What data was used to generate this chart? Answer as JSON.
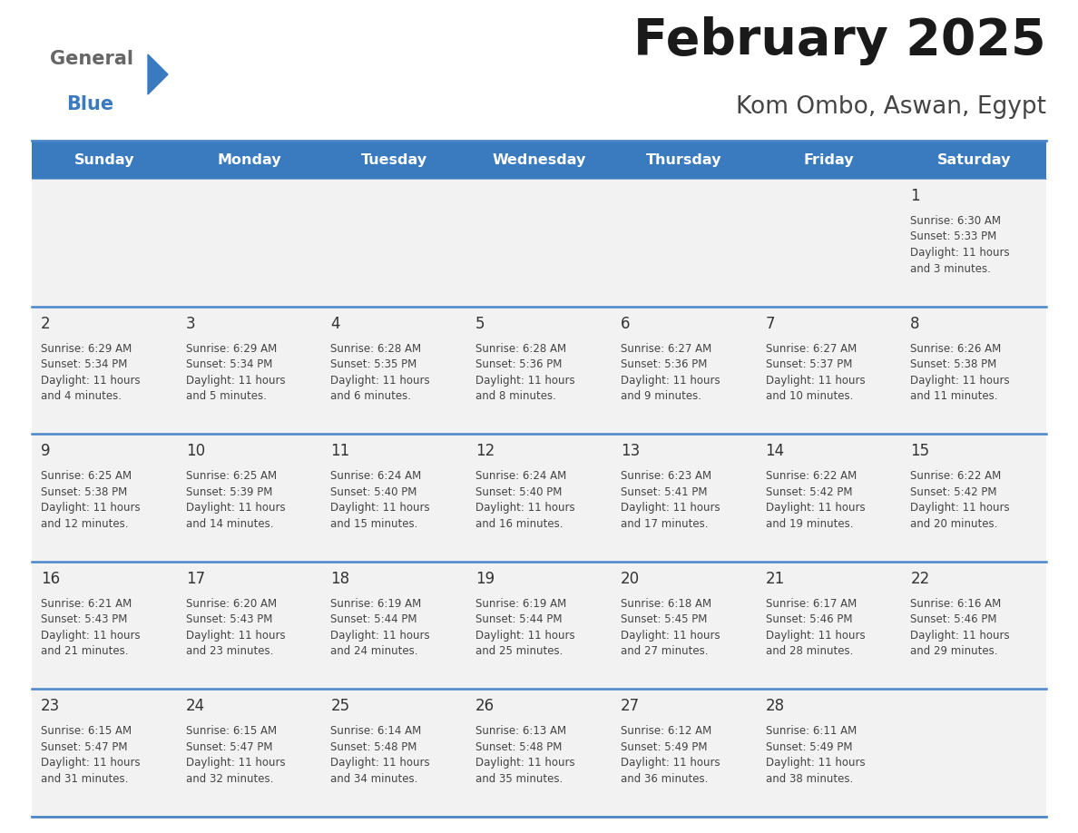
{
  "title": "February 2025",
  "subtitle": "Kom Ombo, Aswan, Egypt",
  "days_of_week": [
    "Sunday",
    "Monday",
    "Tuesday",
    "Wednesday",
    "Thursday",
    "Friday",
    "Saturday"
  ],
  "header_bg": "#3a7abf",
  "header_text": "#ffffff",
  "cell_bg": "#f2f2f2",
  "border_color": "#4a86c8",
  "text_color": "#444444",
  "day_num_color": "#333333",
  "calendar_data": [
    [
      null,
      null,
      null,
      null,
      null,
      null,
      {
        "day": "1",
        "sunrise": "6:30 AM",
        "sunset": "5:33 PM",
        "daylight": "11 hours\nand 3 minutes."
      }
    ],
    [
      {
        "day": "2",
        "sunrise": "6:29 AM",
        "sunset": "5:34 PM",
        "daylight": "11 hours\nand 4 minutes."
      },
      {
        "day": "3",
        "sunrise": "6:29 AM",
        "sunset": "5:34 PM",
        "daylight": "11 hours\nand 5 minutes."
      },
      {
        "day": "4",
        "sunrise": "6:28 AM",
        "sunset": "5:35 PM",
        "daylight": "11 hours\nand 6 minutes."
      },
      {
        "day": "5",
        "sunrise": "6:28 AM",
        "sunset": "5:36 PM",
        "daylight": "11 hours\nand 8 minutes."
      },
      {
        "day": "6",
        "sunrise": "6:27 AM",
        "sunset": "5:36 PM",
        "daylight": "11 hours\nand 9 minutes."
      },
      {
        "day": "7",
        "sunrise": "6:27 AM",
        "sunset": "5:37 PM",
        "daylight": "11 hours\nand 10 minutes."
      },
      {
        "day": "8",
        "sunrise": "6:26 AM",
        "sunset": "5:38 PM",
        "daylight": "11 hours\nand 11 minutes."
      }
    ],
    [
      {
        "day": "9",
        "sunrise": "6:25 AM",
        "sunset": "5:38 PM",
        "daylight": "11 hours\nand 12 minutes."
      },
      {
        "day": "10",
        "sunrise": "6:25 AM",
        "sunset": "5:39 PM",
        "daylight": "11 hours\nand 14 minutes."
      },
      {
        "day": "11",
        "sunrise": "6:24 AM",
        "sunset": "5:40 PM",
        "daylight": "11 hours\nand 15 minutes."
      },
      {
        "day": "12",
        "sunrise": "6:24 AM",
        "sunset": "5:40 PM",
        "daylight": "11 hours\nand 16 minutes."
      },
      {
        "day": "13",
        "sunrise": "6:23 AM",
        "sunset": "5:41 PM",
        "daylight": "11 hours\nand 17 minutes."
      },
      {
        "day": "14",
        "sunrise": "6:22 AM",
        "sunset": "5:42 PM",
        "daylight": "11 hours\nand 19 minutes."
      },
      {
        "day": "15",
        "sunrise": "6:22 AM",
        "sunset": "5:42 PM",
        "daylight": "11 hours\nand 20 minutes."
      }
    ],
    [
      {
        "day": "16",
        "sunrise": "6:21 AM",
        "sunset": "5:43 PM",
        "daylight": "11 hours\nand 21 minutes."
      },
      {
        "day": "17",
        "sunrise": "6:20 AM",
        "sunset": "5:43 PM",
        "daylight": "11 hours\nand 23 minutes."
      },
      {
        "day": "18",
        "sunrise": "6:19 AM",
        "sunset": "5:44 PM",
        "daylight": "11 hours\nand 24 minutes."
      },
      {
        "day": "19",
        "sunrise": "6:19 AM",
        "sunset": "5:44 PM",
        "daylight": "11 hours\nand 25 minutes."
      },
      {
        "day": "20",
        "sunrise": "6:18 AM",
        "sunset": "5:45 PM",
        "daylight": "11 hours\nand 27 minutes."
      },
      {
        "day": "21",
        "sunrise": "6:17 AM",
        "sunset": "5:46 PM",
        "daylight": "11 hours\nand 28 minutes."
      },
      {
        "day": "22",
        "sunrise": "6:16 AM",
        "sunset": "5:46 PM",
        "daylight": "11 hours\nand 29 minutes."
      }
    ],
    [
      {
        "day": "23",
        "sunrise": "6:15 AM",
        "sunset": "5:47 PM",
        "daylight": "11 hours\nand 31 minutes."
      },
      {
        "day": "24",
        "sunrise": "6:15 AM",
        "sunset": "5:47 PM",
        "daylight": "11 hours\nand 32 minutes."
      },
      {
        "day": "25",
        "sunrise": "6:14 AM",
        "sunset": "5:48 PM",
        "daylight": "11 hours\nand 34 minutes."
      },
      {
        "day": "26",
        "sunrise": "6:13 AM",
        "sunset": "5:48 PM",
        "daylight": "11 hours\nand 35 minutes."
      },
      {
        "day": "27",
        "sunrise": "6:12 AM",
        "sunset": "5:49 PM",
        "daylight": "11 hours\nand 36 minutes."
      },
      {
        "day": "28",
        "sunrise": "6:11 AM",
        "sunset": "5:49 PM",
        "daylight": "11 hours\nand 38 minutes."
      },
      null
    ]
  ],
  "logo_general_color": "#666666",
  "logo_blue_color": "#3a7abf",
  "fig_bg": "#ffffff",
  "fig_width": 11.88,
  "fig_height": 9.18,
  "dpi": 100
}
